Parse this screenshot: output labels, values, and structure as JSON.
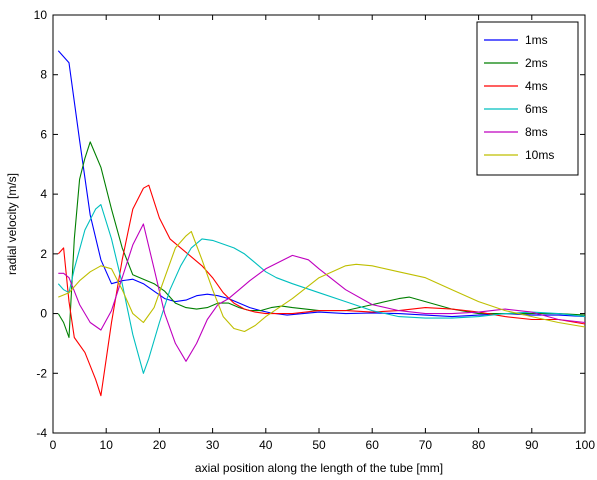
{
  "chart_data": {
    "type": "line",
    "xlabel": "axial position along the length of the tube [mm]",
    "ylabel": "radial velocity [m/s]",
    "xlim": [
      0,
      100
    ],
    "ylim": [
      -4,
      10
    ],
    "xticks": [
      0,
      10,
      20,
      30,
      40,
      50,
      60,
      70,
      80,
      90,
      100
    ],
    "yticks": [
      -4,
      -2,
      0,
      2,
      4,
      6,
      8,
      10
    ],
    "xtick_labels": [
      "0",
      "10",
      "20",
      "30",
      "40",
      "50",
      "60",
      "70",
      "80",
      "90",
      "100"
    ],
    "ytick_labels": [
      "-4",
      "-2",
      "0",
      "2",
      "4",
      "6",
      "8",
      "10"
    ],
    "grid": false,
    "legend_position": "top-right",
    "series": [
      {
        "name": "1ms",
        "color": "#0000ff",
        "points": [
          [
            1,
            8.8
          ],
          [
            3,
            8.4
          ],
          [
            5,
            5.8
          ],
          [
            7,
            3.3
          ],
          [
            9,
            1.8
          ],
          [
            11,
            1.0
          ],
          [
            13,
            1.1
          ],
          [
            15,
            1.15
          ],
          [
            17,
            1.0
          ],
          [
            19,
            0.75
          ],
          [
            21,
            0.5
          ],
          [
            23,
            0.4
          ],
          [
            25,
            0.45
          ],
          [
            27,
            0.6
          ],
          [
            29,
            0.65
          ],
          [
            31,
            0.6
          ],
          [
            33,
            0.5
          ],
          [
            35,
            0.35
          ],
          [
            37,
            0.2
          ],
          [
            39,
            0.1
          ],
          [
            41,
            0.02
          ],
          [
            44,
            -0.05
          ],
          [
            47,
            0.0
          ],
          [
            50,
            0.05
          ],
          [
            55,
            0.0
          ],
          [
            60,
            0.02
          ],
          [
            65,
            0.0
          ],
          [
            70,
            -0.05
          ],
          [
            75,
            -0.1
          ],
          [
            80,
            -0.05
          ],
          [
            85,
            0.0
          ],
          [
            90,
            -0.05
          ],
          [
            95,
            -0.05
          ],
          [
            100,
            -0.1
          ]
        ]
      },
      {
        "name": "2ms",
        "color": "#007f00",
        "points": [
          [
            1,
            0.0
          ],
          [
            2,
            -0.3
          ],
          [
            3,
            -0.8
          ],
          [
            4,
            2.5
          ],
          [
            5,
            4.5
          ],
          [
            6,
            5.2
          ],
          [
            7,
            5.75
          ],
          [
            9,
            4.9
          ],
          [
            11,
            3.5
          ],
          [
            13,
            2.2
          ],
          [
            15,
            1.3
          ],
          [
            17,
            1.15
          ],
          [
            19,
            1.0
          ],
          [
            21,
            0.75
          ],
          [
            23,
            0.35
          ],
          [
            25,
            0.2
          ],
          [
            27,
            0.15
          ],
          [
            29,
            0.2
          ],
          [
            31,
            0.35
          ],
          [
            33,
            0.35
          ],
          [
            35,
            0.2
          ],
          [
            37,
            0.1
          ],
          [
            39,
            0.1
          ],
          [
            41,
            0.2
          ],
          [
            43,
            0.25
          ],
          [
            45,
            0.2
          ],
          [
            50,
            0.1
          ],
          [
            55,
            0.1
          ],
          [
            60,
            0.3
          ],
          [
            65,
            0.5
          ],
          [
            67,
            0.55
          ],
          [
            70,
            0.4
          ],
          [
            75,
            0.15
          ],
          [
            80,
            0.0
          ],
          [
            85,
            0.0
          ],
          [
            90,
            0.0
          ],
          [
            95,
            0.0
          ],
          [
            100,
            -0.05
          ]
        ]
      },
      {
        "name": "4ms",
        "color": "#ff0000",
        "points": [
          [
            1,
            2.0
          ],
          [
            2,
            2.2
          ],
          [
            3,
            0.4
          ],
          [
            4,
            -0.8
          ],
          [
            6,
            -1.3
          ],
          [
            8,
            -2.2
          ],
          [
            9,
            -2.75
          ],
          [
            11,
            -0.3
          ],
          [
            13,
            1.8
          ],
          [
            15,
            3.5
          ],
          [
            17,
            4.2
          ],
          [
            18,
            4.3
          ],
          [
            20,
            3.2
          ],
          [
            22,
            2.5
          ],
          [
            24,
            2.2
          ],
          [
            26,
            1.9
          ],
          [
            28,
            1.6
          ],
          [
            30,
            1.2
          ],
          [
            32,
            0.7
          ],
          [
            34,
            0.35
          ],
          [
            36,
            0.15
          ],
          [
            38,
            0.05
          ],
          [
            40,
            0.0
          ],
          [
            45,
            0.0
          ],
          [
            50,
            0.1
          ],
          [
            55,
            0.1
          ],
          [
            60,
            0.05
          ],
          [
            65,
            0.1
          ],
          [
            70,
            0.2
          ],
          [
            75,
            0.15
          ],
          [
            80,
            0.05
          ],
          [
            85,
            -0.1
          ],
          [
            90,
            -0.2
          ],
          [
            95,
            -0.2
          ],
          [
            100,
            -0.35
          ]
        ]
      },
      {
        "name": "6ms",
        "color": "#00bfbf",
        "points": [
          [
            1,
            1.0
          ],
          [
            2,
            0.8
          ],
          [
            3,
            0.7
          ],
          [
            4,
            1.5
          ],
          [
            6,
            2.8
          ],
          [
            8,
            3.5
          ],
          [
            9,
            3.65
          ],
          [
            11,
            2.5
          ],
          [
            13,
            1.0
          ],
          [
            15,
            -0.7
          ],
          [
            17,
            -2.0
          ],
          [
            18,
            -1.5
          ],
          [
            20,
            -0.3
          ],
          [
            22,
            0.8
          ],
          [
            24,
            1.6
          ],
          [
            26,
            2.2
          ],
          [
            28,
            2.5
          ],
          [
            30,
            2.45
          ],
          [
            34,
            2.2
          ],
          [
            36,
            2.0
          ],
          [
            38,
            1.7
          ],
          [
            40,
            1.4
          ],
          [
            42,
            1.2
          ],
          [
            45,
            1.0
          ],
          [
            50,
            0.7
          ],
          [
            55,
            0.4
          ],
          [
            60,
            0.1
          ],
          [
            65,
            -0.1
          ],
          [
            70,
            -0.15
          ],
          [
            75,
            -0.15
          ],
          [
            80,
            -0.1
          ],
          [
            85,
            0.0
          ],
          [
            90,
            0.05
          ],
          [
            95,
            0.0
          ],
          [
            100,
            -0.1
          ]
        ]
      },
      {
        "name": "8ms",
        "color": "#bf00bf",
        "points": [
          [
            1,
            1.35
          ],
          [
            2,
            1.35
          ],
          [
            3,
            1.2
          ],
          [
            5,
            0.3
          ],
          [
            7,
            -0.3
          ],
          [
            9,
            -0.55
          ],
          [
            11,
            0.1
          ],
          [
            13,
            1.2
          ],
          [
            15,
            2.3
          ],
          [
            17,
            3.0
          ],
          [
            19,
            1.5
          ],
          [
            21,
            0.0
          ],
          [
            23,
            -1.0
          ],
          [
            25,
            -1.6
          ],
          [
            27,
            -1.0
          ],
          [
            29,
            -0.2
          ],
          [
            31,
            0.3
          ],
          [
            33,
            0.5
          ],
          [
            35,
            0.8
          ],
          [
            37,
            1.1
          ],
          [
            40,
            1.5
          ],
          [
            45,
            1.95
          ],
          [
            48,
            1.8
          ],
          [
            50,
            1.5
          ],
          [
            55,
            0.8
          ],
          [
            60,
            0.3
          ],
          [
            65,
            0.1
          ],
          [
            70,
            0.0
          ],
          [
            75,
            0.0
          ],
          [
            80,
            0.05
          ],
          [
            85,
            0.15
          ],
          [
            90,
            0.05
          ],
          [
            95,
            -0.2
          ],
          [
            100,
            -0.3
          ]
        ]
      },
      {
        "name": "10ms",
        "color": "#bfbf00",
        "points": [
          [
            1,
            0.55
          ],
          [
            3,
            0.7
          ],
          [
            5,
            1.1
          ],
          [
            7,
            1.4
          ],
          [
            9,
            1.6
          ],
          [
            11,
            1.5
          ],
          [
            13,
            0.8
          ],
          [
            15,
            0.0
          ],
          [
            17,
            -0.3
          ],
          [
            19,
            0.2
          ],
          [
            21,
            1.2
          ],
          [
            23,
            2.2
          ],
          [
            25,
            2.6
          ],
          [
            26,
            2.75
          ],
          [
            28,
            1.8
          ],
          [
            30,
            0.8
          ],
          [
            32,
            -0.1
          ],
          [
            34,
            -0.5
          ],
          [
            36,
            -0.6
          ],
          [
            38,
            -0.4
          ],
          [
            40,
            -0.1
          ],
          [
            45,
            0.5
          ],
          [
            50,
            1.2
          ],
          [
            55,
            1.6
          ],
          [
            57,
            1.65
          ],
          [
            60,
            1.6
          ],
          [
            65,
            1.4
          ],
          [
            70,
            1.2
          ],
          [
            75,
            0.8
          ],
          [
            80,
            0.4
          ],
          [
            85,
            0.1
          ],
          [
            90,
            -0.1
          ],
          [
            95,
            -0.3
          ],
          [
            100,
            -0.45
          ]
        ]
      }
    ]
  }
}
